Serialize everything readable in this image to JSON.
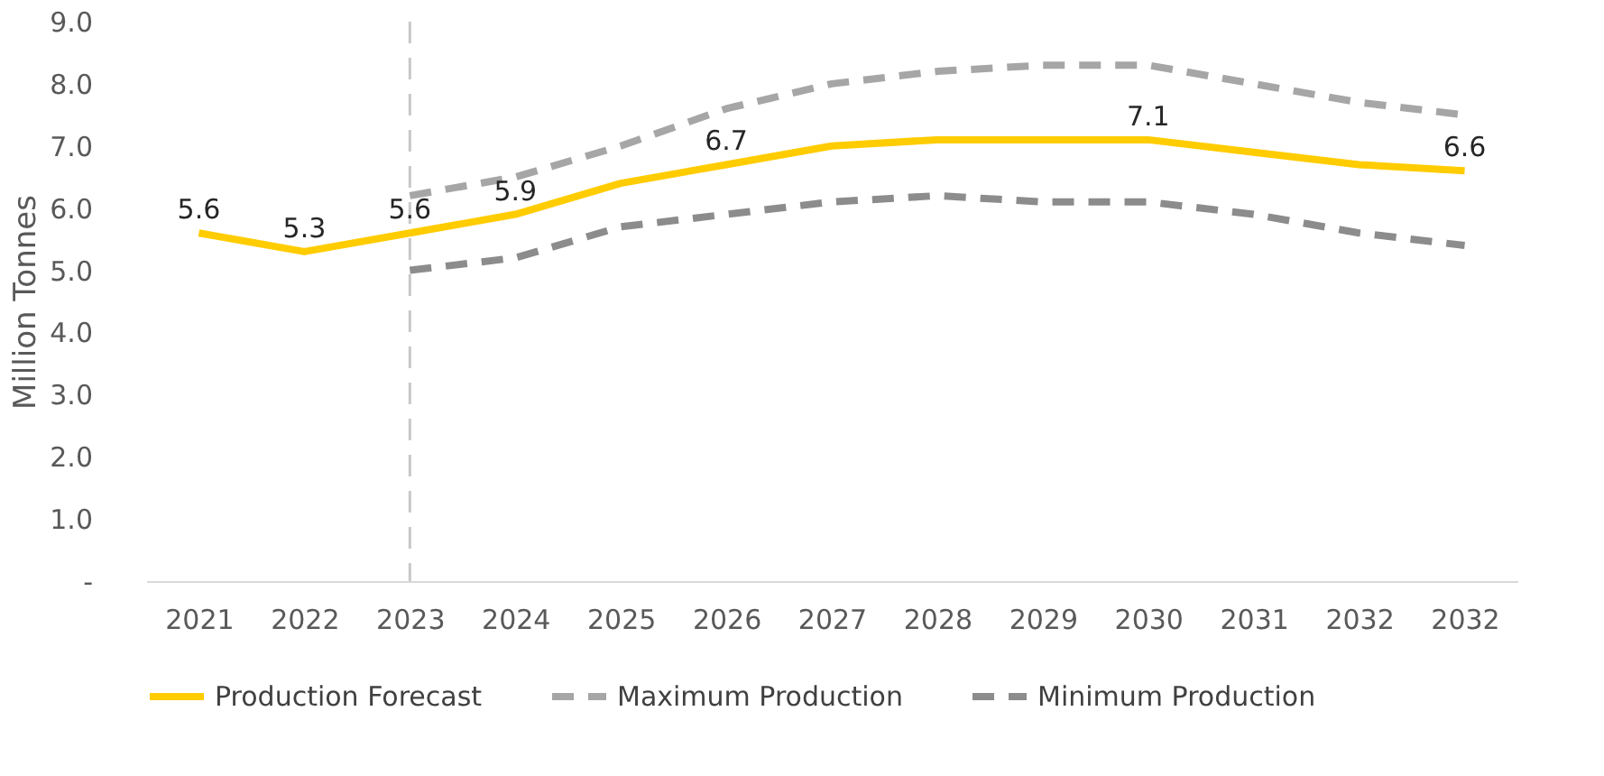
{
  "chart_data": {
    "type": "line",
    "ylabel": "Million Tonnes",
    "categories": [
      "2021",
      "2022",
      "2023",
      "2024",
      "2025",
      "2026",
      "2027",
      "2028",
      "2029",
      "2030",
      "2031",
      "2032",
      "2032"
    ],
    "series": [
      {
        "name": "Production Forecast",
        "color": "#ffcc00",
        "line_style": "solid",
        "values": [
          5.6,
          5.3,
          5.6,
          5.9,
          6.4,
          6.7,
          7.0,
          7.1,
          7.1,
          7.1,
          6.9,
          6.7,
          6.6
        ],
        "value_labels": [
          "5.6",
          "5.3",
          "5.6",
          "5.9",
          null,
          "6.7",
          null,
          null,
          null,
          "7.1",
          null,
          null,
          "6.6"
        ]
      },
      {
        "name": "Maximum Production",
        "color": "#a6a6a6",
        "line_style": "dashed",
        "values": [
          null,
          null,
          6.2,
          6.5,
          7.0,
          7.6,
          8.0,
          8.2,
          8.3,
          8.3,
          8.0,
          7.7,
          7.5
        ]
      },
      {
        "name": "Minimum Production",
        "color": "#8c8c8c",
        "line_style": "dashed",
        "values": [
          null,
          null,
          5.0,
          5.2,
          5.7,
          5.9,
          6.1,
          6.2,
          6.1,
          6.1,
          5.9,
          5.6,
          5.4
        ]
      }
    ],
    "ylim": [
      0,
      9
    ],
    "yticks": [
      {
        "value": 0,
        "label": "-"
      },
      {
        "value": 1,
        "label": "1.0"
      },
      {
        "value": 2,
        "label": "2.0"
      },
      {
        "value": 3,
        "label": "3.0"
      },
      {
        "value": 4,
        "label": "4.0"
      },
      {
        "value": 5,
        "label": "5.0"
      },
      {
        "value": 6,
        "label": "6.0"
      },
      {
        "value": 7,
        "label": "7.0"
      },
      {
        "value": 8,
        "label": "8.0"
      },
      {
        "value": 9,
        "label": "9.0"
      }
    ],
    "ref_lines": [
      {
        "axis": "x",
        "value": "2023",
        "color": "#c8c8c8",
        "line_style": "dashed"
      }
    ],
    "grid": false,
    "legend": "bottom",
    "marker": "none"
  }
}
